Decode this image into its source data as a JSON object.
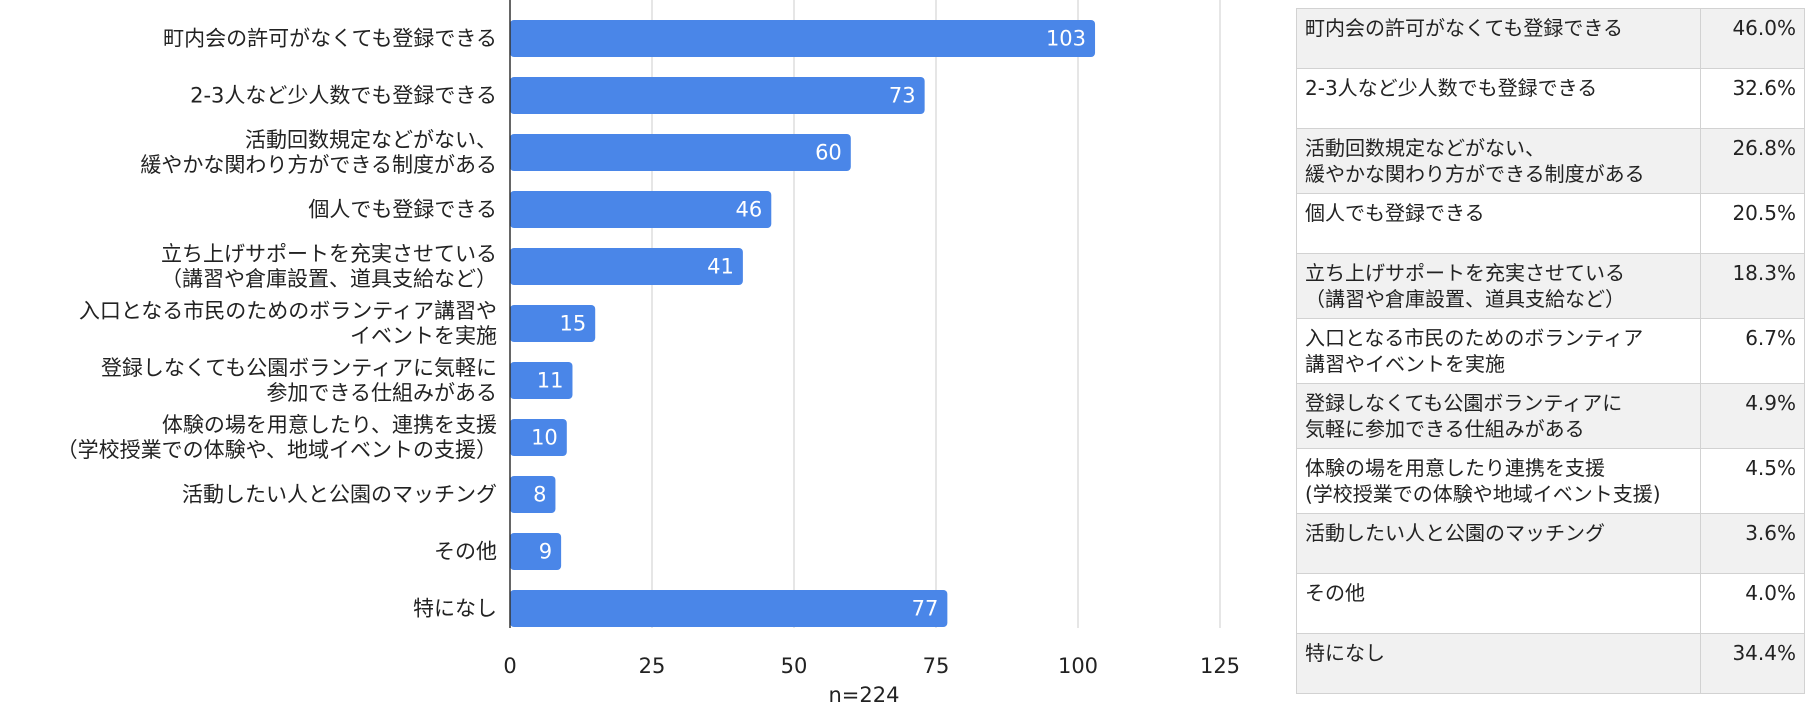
{
  "chart_data": {
    "type": "bar",
    "orientation": "horizontal",
    "categories": [
      "町内会の許可がなくても登録できる",
      "2-3人など少人数でも登録できる",
      "活動回数規定などがない、\n緩やかな関わり方ができる制度がある",
      "個人でも登録できる",
      "立ち上げサポートを充実させている\n（講習や倉庫設置、道具支給など）",
      "入口となる市民のためのボランティア講習や\nイベントを実施",
      "登録しなくても公園ボランティアに気軽に\n参加できる仕組みがある",
      "体験の場を用意したり、連携を支援\n（学校授業での体験や、地域イベントの支援）",
      "活動したい人と公園のマッチング",
      "その他",
      "特になし"
    ],
    "values": [
      103,
      73,
      60,
      46,
      41,
      15,
      11,
      10,
      8,
      9,
      77
    ],
    "xlabel": "n=224",
    "xlim": [
      0,
      125
    ],
    "xticks": [
      0,
      25,
      50,
      75,
      100,
      125
    ],
    "grid": true,
    "bar_color": "#4a86e8",
    "data_labels": true
  },
  "table": {
    "rows": [
      {
        "label": "町内会の許可がなくても登録できる",
        "pct": "46.0%"
      },
      {
        "label": "2-3人など少人数でも登録できる",
        "pct": "32.6%"
      },
      {
        "label": "活動回数規定などがない、\n緩やかな関わり方ができる制度がある",
        "pct": "26.8%"
      },
      {
        "label": "個人でも登録できる",
        "pct": "20.5%"
      },
      {
        "label": "立ち上げサポートを充実させている\n（講習や倉庫設置、道具支給など）",
        "pct": "18.3%"
      },
      {
        "label": "入口となる市民のためのボランティア\n講習やイベントを実施",
        "pct": "6.7%"
      },
      {
        "label": "登録しなくても公園ボランティアに\n気軽に参加できる仕組みがある",
        "pct": "4.9%"
      },
      {
        "label": "体験の場を用意したり連携を支援\n(学校授業での体験や地域イベント支援)",
        "pct": "4.5%"
      },
      {
        "label": "活動したい人と公園のマッチング",
        "pct": "3.6%"
      },
      {
        "label": "その他",
        "pct": "4.0%"
      },
      {
        "label": "特になし",
        "pct": "34.4%"
      }
    ]
  }
}
